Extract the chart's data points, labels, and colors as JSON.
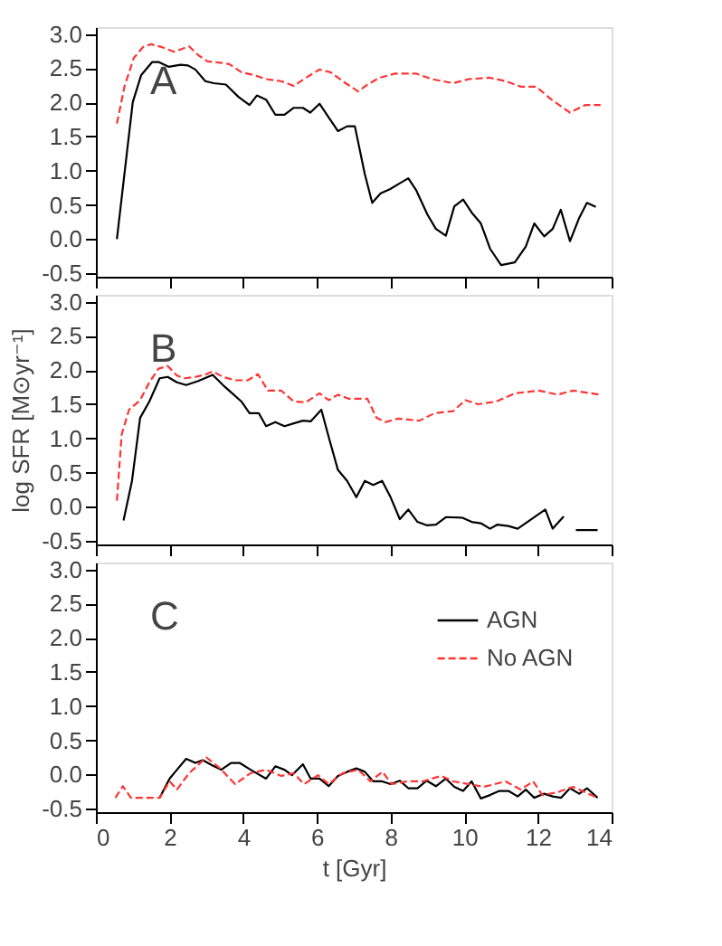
{
  "chart_data": [
    {
      "type": "line",
      "annotations": [
        "A"
      ],
      "xlim": [
        0,
        14
      ],
      "xticks": [
        0,
        2,
        4,
        6,
        8,
        10,
        12,
        14
      ],
      "ylim": [
        -0.55,
        3.1
      ],
      "yticks": [
        -0.5,
        {
          "value": 0,
          "label": "0.0"
        },
        0.5,
        {
          "value": 1,
          "label": "1.0"
        },
        1.5,
        {
          "value": 2,
          "label": "2.0"
        },
        2.5,
        {
          "value": 3,
          "label": "3.0"
        }
      ],
      "tick_labels": "y",
      "grid": false,
      "series": [
        {
          "color": "#000000",
          "line_style": "solid",
          "x": [
            0.57,
            1.0,
            1.23,
            1.53,
            1.7,
            1.97,
            2.3,
            2.5,
            2.7,
            2.97,
            3.2,
            3.53,
            3.87,
            4.17,
            4.37,
            4.62,
            4.87,
            5.12,
            5.37,
            5.62,
            5.82,
            6.07,
            6.32,
            6.57,
            6.82,
            7.03,
            7.3,
            7.5,
            7.73,
            7.98,
            8.23,
            8.48,
            8.7,
            9.0,
            9.23,
            9.5,
            9.73,
            9.97,
            10.2,
            10.45,
            10.7,
            11.0,
            11.37,
            11.67,
            11.9,
            12.17,
            12.4,
            12.62,
            12.87,
            13.12,
            13.33,
            13.57
          ],
          "values": [
            0.0,
            2.0,
            2.4,
            2.59,
            2.59,
            2.52,
            2.55,
            2.54,
            2.48,
            2.31,
            2.28,
            2.26,
            2.08,
            1.96,
            2.1,
            2.04,
            1.82,
            1.82,
            1.92,
            1.92,
            1.85,
            1.98,
            1.78,
            1.58,
            1.65,
            1.65,
            0.95,
            0.53,
            0.67,
            0.73,
            0.81,
            0.89,
            0.71,
            0.36,
            0.15,
            0.05,
            0.48,
            0.58,
            0.39,
            0.23,
            -0.14,
            -0.38,
            -0.34,
            -0.11,
            0.23,
            0.04,
            0.15,
            0.43,
            -0.03,
            0.31,
            0.53,
            0.47
          ]
        },
        {
          "color": "#ff3333",
          "line_style": "dashed",
          "x": [
            0.57,
            0.78,
            1.03,
            1.28,
            1.5,
            1.78,
            2.12,
            2.28,
            2.53,
            2.78,
            3.03,
            3.37,
            3.62,
            3.95,
            4.28,
            4.62,
            5.03,
            5.37,
            5.7,
            6.07,
            6.37,
            6.78,
            7.12,
            7.37,
            7.7,
            8.12,
            8.7,
            9.12,
            9.7,
            10.12,
            10.7,
            11.12,
            11.53,
            11.95,
            12.37,
            12.87,
            13.28,
            13.7
          ],
          "values": [
            1.69,
            2.24,
            2.65,
            2.81,
            2.85,
            2.81,
            2.74,
            2.77,
            2.82,
            2.69,
            2.6,
            2.58,
            2.56,
            2.44,
            2.4,
            2.34,
            2.31,
            2.24,
            2.36,
            2.48,
            2.44,
            2.28,
            2.16,
            2.26,
            2.36,
            2.42,
            2.42,
            2.34,
            2.28,
            2.34,
            2.36,
            2.31,
            2.23,
            2.23,
            2.04,
            1.85,
            1.96,
            1.96
          ]
        }
      ]
    },
    {
      "type": "line",
      "annotations": [
        "B"
      ],
      "ylabel": "log SFR [M⊙yr⁻¹]",
      "xlim": [
        0,
        14
      ],
      "xticks": [
        0,
        2,
        4,
        6,
        8,
        10,
        12,
        14
      ],
      "ylim": [
        -0.55,
        3.1
      ],
      "yticks": [
        -0.5,
        {
          "value": 0,
          "label": "0.0"
        },
        0.5,
        {
          "value": 1,
          "label": "1.0"
        },
        1.5,
        {
          "value": 2,
          "label": "2.0"
        },
        2.5,
        {
          "value": 3,
          "label": "3.0"
        }
      ],
      "tick_labels": "y",
      "grid": false,
      "series": [
        {
          "color": "#000000",
          "line_style": "solid",
          "x": [
            0.75,
            0.98,
            1.2,
            1.45,
            1.73,
            1.95,
            2.2,
            2.45,
            2.78,
            3.17,
            3.45,
            3.7,
            3.95,
            4.17,
            4.42,
            4.62,
            4.87,
            5.12,
            5.37,
            5.62,
            5.83,
            6.12,
            6.32,
            6.57,
            6.82,
            7.07,
            7.3,
            7.53,
            7.77,
            8.0,
            8.25,
            8.48,
            8.73,
            8.98,
            9.23,
            9.5,
            9.95,
            10.2,
            10.45,
            10.7,
            10.9,
            11.2,
            11.45,
            12.2,
            12.4,
            12.7,
            12.85,
            13.03,
            13.62
          ],
          "values": [
            -0.2,
            0.38,
            1.3,
            1.54,
            1.88,
            1.9,
            1.82,
            1.78,
            1.84,
            1.93,
            1.78,
            1.66,
            1.54,
            1.37,
            1.37,
            1.18,
            1.24,
            1.18,
            1.22,
            1.26,
            1.25,
            1.42,
            1.02,
            0.54,
            0.38,
            0.14,
            0.38,
            0.32,
            0.38,
            0.14,
            -0.18,
            -0.04,
            -0.22,
            -0.27,
            -0.26,
            -0.15,
            -0.16,
            -0.22,
            -0.24,
            -0.32,
            -0.26,
            -0.28,
            -0.32,
            -0.04,
            -0.32,
            -0.14,
            null,
            -0.34,
            -0.34
          ]
        },
        {
          "color": "#ff3333",
          "line_style": "dashed",
          "x": [
            0.57,
            0.7,
            0.9,
            1.2,
            1.45,
            1.7,
            1.95,
            2.2,
            2.4,
            2.7,
            2.95,
            3.17,
            3.45,
            3.78,
            4.12,
            4.4,
            4.67,
            5.03,
            5.37,
            5.7,
            6.07,
            6.32,
            6.57,
            6.87,
            7.37,
            7.62,
            7.87,
            8.2,
            8.78,
            9.2,
            9.7,
            10.03,
            10.37,
            10.87,
            11.37,
            12.03,
            12.53,
            12.95,
            13.7
          ],
          "values": [
            0.09,
            1.06,
            1.42,
            1.56,
            1.82,
            2.02,
            2.06,
            1.92,
            1.88,
            1.9,
            1.93,
            1.98,
            1.9,
            1.85,
            1.85,
            1.94,
            1.7,
            1.7,
            1.54,
            1.53,
            1.66,
            1.56,
            1.64,
            1.58,
            1.58,
            1.3,
            1.24,
            1.29,
            1.26,
            1.37,
            1.4,
            1.56,
            1.5,
            1.54,
            1.66,
            1.7,
            1.64,
            1.7,
            1.64
          ]
        }
      ]
    },
    {
      "type": "line",
      "annotations": [
        "C"
      ],
      "xlabel": "t [Gyr]",
      "xlim": [
        0,
        14
      ],
      "xticks": [
        0,
        2,
        4,
        6,
        8,
        10,
        12,
        14
      ],
      "ylim": [
        -0.55,
        3.1
      ],
      "yticks": [
        -0.5,
        {
          "value": 0,
          "label": "0.0"
        },
        0.5,
        {
          "value": 1,
          "label": "1.0"
        },
        1.5,
        {
          "value": 2,
          "label": "2.0"
        },
        2.5,
        {
          "value": 3,
          "label": "3.0"
        }
      ],
      "grid": false,
      "legend": "top right",
      "series": [
        {
          "name": "AGN",
          "color": "#000000",
          "line_style": "solid",
          "x": [
            1.73,
            2.0,
            2.2,
            2.45,
            2.7,
            2.9,
            3.17,
            3.4,
            3.67,
            3.9,
            4.2,
            4.62,
            4.87,
            5.12,
            5.32,
            5.62,
            5.83,
            6.07,
            6.32,
            6.57,
            6.82,
            7.07,
            7.3,
            7.53,
            7.77,
            8.0,
            8.25,
            8.48,
            8.73,
            8.98,
            9.23,
            9.5,
            9.73,
            9.97,
            10.2,
            10.45,
            10.7,
            10.95,
            11.2,
            11.45,
            11.67,
            11.9,
            12.17,
            12.4,
            12.63,
            12.87,
            13.12,
            13.33,
            13.62
          ],
          "values": [
            -0.34,
            -0.06,
            0.07,
            0.23,
            0.17,
            0.21,
            0.13,
            0.07,
            0.17,
            0.17,
            0.07,
            -0.06,
            0.12,
            0.07,
            -0.01,
            0.15,
            -0.06,
            -0.06,
            -0.17,
            -0.02,
            0.04,
            0.09,
            0.04,
            -0.1,
            -0.1,
            -0.14,
            -0.09,
            -0.2,
            -0.2,
            -0.09,
            -0.17,
            -0.06,
            -0.18,
            -0.24,
            -0.1,
            -0.35,
            -0.3,
            -0.24,
            -0.24,
            -0.32,
            -0.22,
            -0.34,
            -0.28,
            -0.32,
            -0.34,
            -0.2,
            -0.28,
            -0.2,
            -0.34
          ]
        },
        {
          "name": "No AGN",
          "color": "#ff3333",
          "line_style": "dashed",
          "x": [
            0.53,
            0.73,
            0.95,
            1.73,
            2.0,
            2.2,
            2.53,
            3.0,
            3.37,
            3.78,
            4.2,
            4.62,
            5.03,
            5.37,
            5.65,
            6.03,
            6.32,
            6.7,
            7.12,
            7.45,
            7.78,
            8.03,
            8.45,
            8.87,
            9.37,
            9.7,
            10.12,
            10.53,
            11.12,
            11.53,
            11.87,
            12.12,
            12.53,
            12.95,
            13.62
          ],
          "values": [
            -0.34,
            -0.17,
            -0.34,
            -0.34,
            -0.1,
            -0.22,
            0.02,
            0.25,
            0.09,
            -0.14,
            0.02,
            0.07,
            -0.02,
            0.02,
            -0.14,
            -0.01,
            -0.14,
            0.02,
            0.07,
            -0.1,
            0.04,
            -0.14,
            -0.1,
            -0.1,
            -0.02,
            -0.1,
            -0.14,
            -0.18,
            -0.1,
            -0.22,
            -0.1,
            -0.3,
            -0.26,
            -0.18,
            -0.34
          ]
        }
      ]
    }
  ]
}
